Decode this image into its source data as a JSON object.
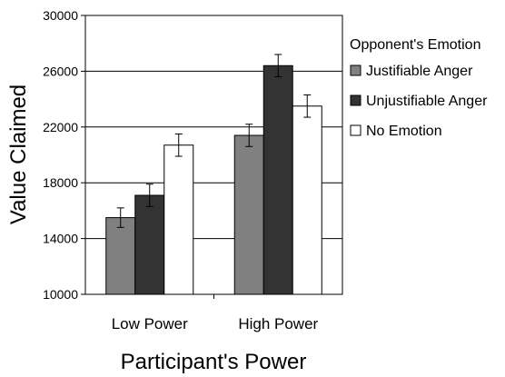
{
  "chart_data": {
    "type": "bar",
    "categories": [
      "Low Power",
      "High Power"
    ],
    "series": [
      {
        "name": "Justifiable Anger",
        "color": "#808080",
        "values": [
          15500,
          21400
        ],
        "errors": [
          700,
          800
        ]
      },
      {
        "name": "Unjustifiable Anger",
        "color": "#333333",
        "values": [
          17100,
          26400
        ],
        "errors": [
          800,
          800
        ]
      },
      {
        "name": "No Emotion",
        "color": "#ffffff",
        "values": [
          20700,
          23500
        ],
        "errors": [
          800,
          800
        ]
      }
    ],
    "title": "",
    "xlabel": "Participant's Power",
    "ylabel": "Value Claimed",
    "ylim": [
      10000,
      30000
    ],
    "yticks": [
      "30000",
      "26000",
      "22000",
      "18000",
      "14000",
      "10000"
    ],
    "legend_title": "Opponent's Emotion",
    "legend_position": "right",
    "grid": true
  }
}
